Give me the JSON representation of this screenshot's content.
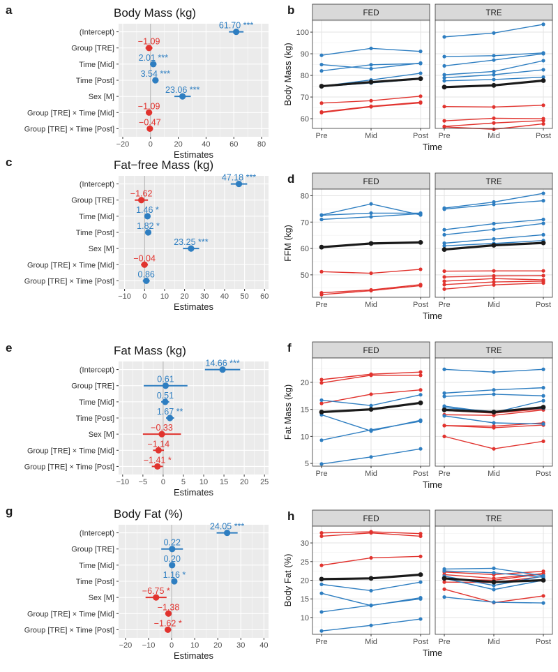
{
  "colors": {
    "positive": "#2E7EC1",
    "negative": "#E1332E",
    "mean": "#1a1a1a",
    "panel_bg": "#EBEBEB",
    "strip_bg": "#D9D9D9",
    "grid": "#ffffff",
    "zero_line": "#A6A6A6"
  },
  "chart_data": [
    {
      "type": "forest",
      "letter": "a",
      "title": "Body Mass (kg)",
      "xlabel": "Estimates",
      "xlim": [
        -23,
        85
      ],
      "xticks": [
        -20,
        0,
        20,
        40,
        60,
        80
      ],
      "terms": [
        "(Intercept)",
        "Group [TRE]",
        "Time [Mid]",
        "Time [Post]",
        "Sex [M]",
        "Group [TRE] × Time [Mid]",
        "Group [TRE] × Time [Post]"
      ],
      "estimates": [
        61.7,
        -1.09,
        2.01,
        3.54,
        23.06,
        -1.09,
        -0.47
      ],
      "ci_low": [
        56.5,
        -3.6,
        -0.3,
        1.3,
        17.2,
        -3.4,
        -2.7
      ],
      "ci_high": [
        67.0,
        1.4,
        4.3,
        5.8,
        29.0,
        1.2,
        1.8
      ],
      "labels": [
        "61.70 ***",
        "−1.09",
        "2.01 ***",
        "3.54 ***",
        "23.06 ***",
        "−1.09",
        "−0.47"
      ]
    },
    {
      "type": "forest",
      "letter": "c",
      "title": "Fat−free Mass (kg)",
      "xlabel": "Estimates",
      "xlim": [
        -13,
        62
      ],
      "xticks": [
        -10,
        0,
        10,
        20,
        30,
        40,
        50,
        60
      ],
      "terms": [
        "(Intercept)",
        "Group [TRE]",
        "Time [Mid]",
        "Time [Post]",
        "Sex [M]",
        "Group [TRE] × Time [Mid]",
        "Group [TRE] × Time [Post]"
      ],
      "estimates": [
        47.18,
        -1.62,
        1.46,
        1.82,
        23.25,
        -0.04,
        0.86
      ],
      "ci_low": [
        43.1,
        -4.9,
        0.2,
        0.5,
        19.2,
        -1.8,
        -0.9
      ],
      "ci_high": [
        51.3,
        1.7,
        2.7,
        3.1,
        27.3,
        1.7,
        2.6
      ],
      "labels": [
        "47.18 ***",
        "−1.62",
        "1.46 *",
        "1.82 *",
        "23.25 ***",
        "−0.04",
        "0.86"
      ]
    },
    {
      "type": "forest",
      "letter": "e",
      "title": "Fat Mass (kg)",
      "xlabel": "Estimates",
      "xlim": [
        -11,
        26
      ],
      "xticks": [
        -10,
        -5,
        0,
        5,
        10,
        15,
        20,
        25
      ],
      "terms": [
        "(Intercept)",
        "Group [TRE]",
        "Time [Mid]",
        "Time [Post]",
        "Sex [M]",
        "Group [TRE] × Time [Mid]",
        "Group [TRE] × Time [Post]"
      ],
      "estimates": [
        14.66,
        0.61,
        0.51,
        1.67,
        -0.33,
        -1.14,
        -1.41
      ],
      "ci_low": [
        10.3,
        -4.8,
        -0.5,
        0.7,
        -5.0,
        -2.5,
        -2.8
      ],
      "ci_high": [
        19.0,
        6.0,
        1.5,
        2.7,
        4.4,
        0.2,
        -0.1
      ],
      "labels": [
        "14.66 ***",
        "0.61",
        "0.51",
        "1.67 **",
        "−0.33",
        "−1.14",
        "−1.41 *"
      ]
    },
    {
      "type": "forest",
      "letter": "g",
      "title": "Body Fat (%)",
      "xlabel": "Estimates",
      "xlim": [
        -23,
        42
      ],
      "xticks": [
        -20,
        -10,
        0,
        10,
        20,
        30,
        40
      ],
      "terms": [
        "(Intercept)",
        "Group [TRE]",
        "Time [Mid]",
        "Time [Post]",
        "Sex [M]",
        "Group [TRE] × Time [Mid]",
        "Group [TRE] × Time [Post]"
      ],
      "estimates": [
        24.05,
        0.22,
        0.2,
        1.16,
        -6.75,
        -1.38,
        -1.62
      ],
      "ci_low": [
        19.5,
        -4.5,
        -0.7,
        0.2,
        -11.3,
        -2.8,
        -3.0
      ],
      "ci_high": [
        28.6,
        4.9,
        1.1,
        2.1,
        -2.2,
        0.0,
        -0.2
      ],
      "labels": [
        "24.05 ***",
        "0.22",
        "0.20",
        "1.16 *",
        "−6.75 *",
        "−1.38",
        "−1.62 *"
      ]
    },
    {
      "type": "line",
      "letter": "b",
      "ylabel": "Body Mass (kg)",
      "xlabel": "Time",
      "ylim": [
        55.5,
        105.5
      ],
      "yticks": [
        60,
        70,
        80,
        90,
        100
      ],
      "xticks": [
        "Pre",
        "Mid",
        "Post"
      ],
      "facets": [
        {
          "name": "FED",
          "blue": [
            [
              89.3,
              92.5,
              91.1
            ],
            [
              85.0,
              83.1,
              85.7
            ],
            [
              82.1,
              84.9,
              85.5
            ],
            [
              75.0,
              77.9,
              81.0
            ],
            [
              74.8,
              76.5,
              78.3
            ]
          ],
          "red": [
            [
              67.2,
              68.3,
              70.4
            ],
            [
              63.1,
              65.7,
              67.6
            ],
            [
              62.8,
              65.5,
              67.3
            ]
          ],
          "mean": [
            75.0,
            76.9,
            78.5
          ]
        },
        {
          "name": "TRE",
          "blue": [
            [
              97.8,
              99.6,
              103.6
            ],
            [
              88.7,
              89.1,
              90.4
            ],
            [
              84.4,
              87.1,
              90.0
            ],
            [
              80.3,
              81.8,
              86.8
            ],
            [
              78.9,
              80.3,
              82.6
            ],
            [
              77.5,
              78.1,
              79.2
            ]
          ],
          "red": [
            [
              65.6,
              65.4,
              66.2
            ],
            [
              59.0,
              60.2,
              60.0
            ],
            [
              56.4,
              58.0,
              59.1
            ],
            [
              56.2,
              55.1,
              57.6
            ]
          ],
          "mean": [
            74.6,
            75.4,
            77.6
          ]
        }
      ]
    },
    {
      "type": "line",
      "letter": "d",
      "ylabel": "FFM (kg)",
      "xlabel": "Time",
      "ylim": [
        41.5,
        82.5
      ],
      "yticks": [
        50,
        60,
        70,
        80
      ],
      "xticks": [
        "Pre",
        "Mid",
        "Post"
      ],
      "facets": [
        {
          "name": "FED",
          "blue": [
            [
              72.7,
              76.9,
              72.7
            ],
            [
              72.6,
              73.4,
              73.4
            ],
            [
              71.0,
              72.0,
              73.2
            ]
          ],
          "red": [
            [
              51.2,
              50.6,
              52.1
            ],
            [
              43.2,
              44.3,
              46.3
            ],
            [
              42.5,
              44.0,
              45.9
            ]
          ],
          "mean": [
            60.5,
            61.9,
            62.3
          ]
        },
        {
          "name": "TRE",
          "blue": [
            [
              75.3,
              77.6,
              80.9
            ],
            [
              74.9,
              76.7,
              78.1
            ],
            [
              67.1,
              69.4,
              71.0
            ],
            [
              65.2,
              67.2,
              69.5
            ],
            [
              62.0,
              63.6,
              65.2
            ],
            [
              61.0,
              61.9,
              63.0
            ]
          ],
          "red": [
            [
              51.4,
              51.5,
              51.5
            ],
            [
              49.2,
              49.6,
              49.7
            ],
            [
              47.6,
              48.6,
              48.1
            ],
            [
              46.3,
              47.3,
              47.6
            ],
            [
              44.6,
              46.2,
              46.9
            ]
          ],
          "mean": [
            59.6,
            61.2,
            62.1
          ]
        }
      ]
    },
    {
      "type": "line",
      "letter": "f",
      "ylabel": "Fat Mass (kg)",
      "xlabel": "Time",
      "ylim": [
        4.5,
        24.5
      ],
      "yticks": [
        5,
        10,
        15,
        20
      ],
      "xticks": [
        "Pre",
        "Mid",
        "Post"
      ],
      "facets": [
        {
          "name": "FED",
          "blue": [
            [
              16.7,
              15.7,
              17.7
            ],
            [
              14.0,
              11.0,
              13.0
            ],
            [
              9.3,
              11.2,
              12.8
            ],
            [
              4.9,
              6.2,
              7.7
            ]
          ],
          "red": [
            [
              20.5,
              21.5,
              21.9
            ],
            [
              19.9,
              21.3,
              21.3
            ],
            [
              16.1,
              17.8,
              18.6
            ]
          ],
          "mean": [
            14.5,
            15.0,
            16.2
          ]
        },
        {
          "name": "TRE",
          "blue": [
            [
              22.4,
              21.9,
              22.4
            ],
            [
              18.0,
              18.6,
              19.0
            ],
            [
              17.4,
              17.8,
              17.5
            ],
            [
              15.6,
              14.4,
              16.6
            ],
            [
              15.3,
              14.6,
              15.2
            ],
            [
              13.8,
              12.5,
              12.3
            ]
          ],
          "red": [
            [
              14.8,
              14.3,
              15.1
            ],
            [
              14.0,
              13.9,
              14.9
            ],
            [
              12.0,
              11.9,
              12.5
            ],
            [
              12.0,
              11.6,
              12.1
            ],
            [
              10.0,
              7.7,
              9.1
            ]
          ],
          "mean": [
            14.9,
            14.5,
            15.4
          ]
        }
      ]
    },
    {
      "type": "line",
      "letter": "h",
      "ylabel": "Body Fat (%)",
      "xlabel": "Time",
      "ylim": [
        5.5,
        34.5
      ],
      "yticks": [
        10,
        15,
        20,
        25,
        30
      ],
      "xticks": [
        "Pre",
        "Mid",
        "Post"
      ],
      "facets": [
        {
          "name": "FED",
          "blue": [
            [
              18.9,
              17.2,
              19.5
            ],
            [
              16.5,
              13.2,
              15.3
            ],
            [
              11.5,
              13.3,
              15.0
            ],
            [
              6.4,
              7.9,
              9.6
            ]
          ],
          "red": [
            [
              32.7,
              33.0,
              32.5
            ],
            [
              31.8,
              32.7,
              31.8
            ],
            [
              24.0,
              26.0,
              26.4
            ]
          ],
          "mean": [
            20.3,
            20.5,
            21.5
          ]
        },
        {
          "name": "TRE",
          "blue": [
            [
              23.0,
              23.2,
              21.2
            ],
            [
              22.5,
              22.0,
              20.8
            ],
            [
              21.1,
              18.6,
              21.1
            ],
            [
              20.5,
              17.5,
              20.0
            ],
            [
              15.5,
              14.1,
              13.9
            ]
          ],
          "red": [
            [
              22.2,
              21.5,
              22.4
            ],
            [
              21.5,
              20.5,
              21.8
            ],
            [
              20.3,
              20.0,
              21.7
            ],
            [
              19.5,
              19.4,
              21.0
            ],
            [
              17.6,
              14.0,
              15.8
            ]
          ],
          "mean": [
            20.5,
            19.5,
            20.0
          ]
        }
      ]
    }
  ]
}
